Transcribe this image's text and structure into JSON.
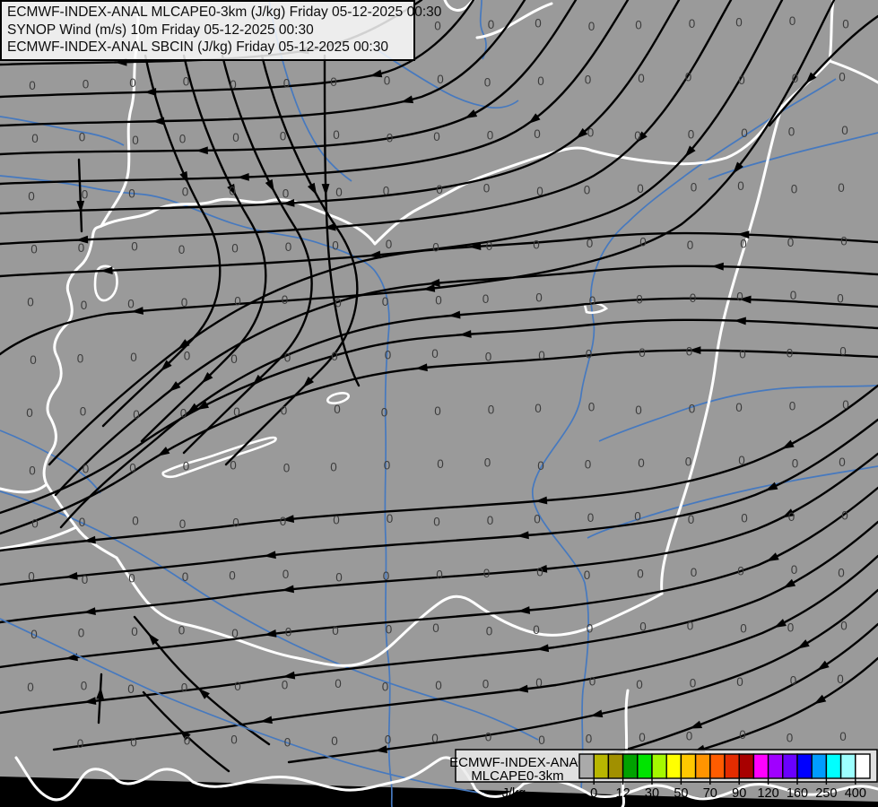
{
  "header": {
    "lines": [
      "ECMWF-INDEX-ANAL MLCAPE0-3km (J/kg) Friday 05-12-2025 00:30",
      "SYNOP Wind (m/s) 10m Friday 05-12-2025 00:30",
      "ECMWF-INDEX-ANAL SBCIN (J/kg) Friday 05-12-2025 00:30"
    ]
  },
  "legend": {
    "title_line1": "ECMWF-INDEX-ANAL",
    "title_line2": "MLCAPE0-3km",
    "unit": "J/kg",
    "tick_labels": [
      "0",
      "12",
      "30",
      "50",
      "70",
      "90",
      "120",
      "160",
      "250",
      "400"
    ],
    "swatch_colors": [
      "#aaaaaa",
      "#b8b600",
      "#a19000",
      "#00a200",
      "#00e400",
      "#a4f800",
      "#ffff00",
      "#ffc800",
      "#ff9400",
      "#ff5c00",
      "#e42c00",
      "#a80000",
      "#ff00ff",
      "#a000ff",
      "#6a00ff",
      "#0000ff",
      "#009cff",
      "#00ffff",
      "#9cffff",
      "#ffffff"
    ]
  },
  "map": {
    "grid_value": "0",
    "colors": {
      "background": "#9a9a9a",
      "outside_domain": "#000000",
      "streamline": "#000000",
      "country_border": "#ffffff",
      "river": "#4679bf",
      "grid_label": "#3c3c3c"
    }
  }
}
